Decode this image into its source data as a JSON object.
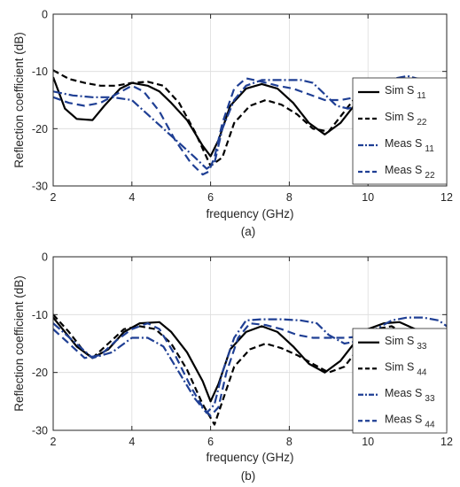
{
  "chart_data": [
    {
      "type": "line",
      "caption": "(a)",
      "xlabel": "frequency (GHz)",
      "ylabel": "Reflection coefficient  (dB)",
      "xlim": [
        2,
        12
      ],
      "ylim": [
        -30,
        0
      ],
      "xticks": [
        2,
        4,
        6,
        8,
        10,
        12
      ],
      "yticks": [
        0,
        -10,
        -20,
        -30
      ],
      "grid": true,
      "legend_position": "right",
      "series": [
        {
          "name": "Sim S",
          "sub": "11",
          "color": "#000000",
          "dash": "solid",
          "x": [
            2.0,
            2.3,
            2.6,
            3.0,
            3.3,
            3.7,
            4.0,
            4.4,
            4.7,
            5.0,
            5.4,
            5.8,
            6.0,
            6.2,
            6.5,
            6.9,
            7.3,
            7.7,
            8.1,
            8.5,
            8.9,
            9.3,
            9.7,
            10.0,
            10.3,
            10.7,
            11.1,
            11.5,
            12.0
          ],
          "y": [
            -11,
            -16.5,
            -18.3,
            -18.5,
            -16,
            -13,
            -12,
            -12.5,
            -13.5,
            -15.5,
            -18.5,
            -23,
            -24.8,
            -22,
            -16,
            -13,
            -12.2,
            -13,
            -15.5,
            -19,
            -21,
            -19,
            -15.5,
            -12.8,
            -11.3,
            -12,
            -14,
            -15.5,
            -16
          ]
        },
        {
          "name": "Sim S",
          "sub": "22",
          "color": "#000000",
          "dash": "7,4",
          "x": [
            2.0,
            2.4,
            2.8,
            3.2,
            3.6,
            4.0,
            4.4,
            4.8,
            5.2,
            5.6,
            6.0,
            6.3,
            6.6,
            7.0,
            7.4,
            7.8,
            8.2,
            8.6,
            9.0,
            9.4,
            9.8,
            10.2,
            10.6,
            11.0,
            11.4,
            11.8,
            12.0
          ],
          "y": [
            -9.8,
            -11.3,
            -12,
            -12.5,
            -12.5,
            -12,
            -11.8,
            -12.5,
            -15.5,
            -20.5,
            -26.5,
            -25,
            -19,
            -16,
            -15,
            -15.8,
            -17.5,
            -20,
            -20.5,
            -17,
            -13.5,
            -12,
            -12.5,
            -14,
            -16.5,
            -19.5,
            -21
          ]
        },
        {
          "name": "Meas S",
          "sub": "11",
          "color": "#1f3f94",
          "dash": "10,3,2,3",
          "x": [
            2.0,
            2.5,
            3.0,
            3.5,
            4.0,
            4.4,
            4.8,
            5.2,
            5.6,
            5.9,
            6.1,
            6.3,
            6.6,
            6.9,
            7.3,
            7.8,
            8.3,
            8.6,
            8.9,
            9.2,
            9.5,
            9.9,
            10.3,
            10.7,
            11.0,
            11.4,
            11.8,
            12.0
          ],
          "y": [
            -13.5,
            -14.2,
            -14.5,
            -14.5,
            -15,
            -17.5,
            -20,
            -22.5,
            -25,
            -27,
            -26,
            -20,
            -15,
            -12.5,
            -11.5,
            -11.5,
            -11.5,
            -12,
            -14,
            -16,
            -16.5,
            -15.5,
            -13,
            -11.2,
            -10.8,
            -11.5,
            -12.5,
            -13
          ]
        },
        {
          "name": "Meas S",
          "sub": "22",
          "color": "#1f3f94",
          "dash": "9,5",
          "x": [
            2.0,
            2.4,
            2.8,
            3.2,
            3.6,
            4.0,
            4.3,
            4.7,
            5.1,
            5.5,
            5.8,
            5.95,
            6.1,
            6.3,
            6.6,
            6.9,
            7.3,
            7.7,
            8.1,
            8.5,
            8.9,
            9.3,
            9.7,
            10.1,
            10.5,
            10.9,
            11.3,
            11.7,
            12.0
          ],
          "y": [
            -14.5,
            -15.5,
            -16,
            -15.5,
            -14,
            -12.5,
            -13.5,
            -17,
            -22,
            -26,
            -28,
            -27.5,
            -25,
            -19,
            -13,
            -11.2,
            -11.8,
            -12.5,
            -13,
            -14,
            -15,
            -15,
            -14.5,
            -14.5,
            -14,
            -13.5,
            -13.5,
            -14,
            -14.5
          ]
        }
      ]
    },
    {
      "type": "line",
      "caption": "(b)",
      "xlabel": "frequency (GHz)",
      "ylabel": "Reflection coefficient  (dB)",
      "xlim": [
        2,
        12
      ],
      "ylim": [
        -30,
        0
      ],
      "xticks": [
        2,
        4,
        6,
        8,
        10,
        12
      ],
      "yticks": [
        0,
        -10,
        -20,
        -30
      ],
      "grid": true,
      "legend_position": "right",
      "series": [
        {
          "name": "Sim S",
          "sub": "33",
          "color": "#000000",
          "dash": "solid",
          "x": [
            2.0,
            2.3,
            2.6,
            3.0,
            3.4,
            3.8,
            4.2,
            4.7,
            5.0,
            5.4,
            5.8,
            6.0,
            6.2,
            6.5,
            6.9,
            7.3,
            7.7,
            8.1,
            8.5,
            8.9,
            9.3,
            9.7,
            10.0,
            10.4,
            10.8,
            11.2,
            11.6,
            12.0
          ],
          "y": [
            -10.5,
            -13,
            -15.5,
            -17.5,
            -16,
            -13,
            -11.5,
            -11.3,
            -13,
            -16.5,
            -21.5,
            -25,
            -22,
            -16,
            -13,
            -12,
            -13,
            -15.5,
            -18.5,
            -20,
            -18,
            -14.5,
            -12.5,
            -11.5,
            -11.3,
            -12.5,
            -13.5,
            -14
          ]
        },
        {
          "name": "Sim S",
          "sub": "44",
          "color": "#000000",
          "dash": "7,4",
          "x": [
            2.0,
            2.4,
            2.8,
            3.0,
            3.4,
            3.8,
            4.2,
            4.6,
            5.0,
            5.4,
            5.8,
            6.1,
            6.3,
            6.6,
            7.0,
            7.4,
            7.8,
            8.2,
            8.6,
            9.0,
            9.4,
            9.8,
            10.2,
            10.6,
            11.0,
            11.4,
            11.8,
            12.0
          ],
          "y": [
            -10,
            -13,
            -16.5,
            -17.5,
            -15,
            -12.5,
            -12,
            -12.5,
            -15,
            -19.5,
            -25.5,
            -29,
            -25,
            -19,
            -16,
            -15,
            -15.8,
            -17,
            -18.5,
            -20,
            -19,
            -15.5,
            -12.5,
            -12,
            -13.5,
            -16,
            -19,
            -21
          ]
        },
        {
          "name": "Meas S",
          "sub": "33",
          "color": "#1f3f94",
          "dash": "10,3,2,3",
          "x": [
            2.0,
            2.5,
            3.0,
            3.5,
            4.0,
            4.4,
            4.8,
            5.2,
            5.6,
            5.9,
            6.1,
            6.3,
            6.6,
            6.9,
            7.3,
            7.8,
            8.3,
            8.7,
            9.0,
            9.4,
            9.8,
            10.2,
            10.6,
            11.0,
            11.4,
            11.8,
            12.0
          ],
          "y": [
            -11.5,
            -14.5,
            -17.5,
            -16.5,
            -14,
            -14,
            -15.5,
            -20,
            -24.5,
            -27,
            -25.5,
            -20,
            -14,
            -11,
            -10.8,
            -10.8,
            -11,
            -11.5,
            -13.5,
            -15,
            -14.5,
            -12.5,
            -11,
            -10.5,
            -10.5,
            -11,
            -12
          ]
        },
        {
          "name": "Meas S",
          "sub": "44",
          "color": "#1f3f94",
          "dash": "9,5",
          "x": [
            2.0,
            2.4,
            2.8,
            3.2,
            3.6,
            4.0,
            4.4,
            4.7,
            5.1,
            5.5,
            5.8,
            6.0,
            6.2,
            6.4,
            6.7,
            7.0,
            7.4,
            7.8,
            8.2,
            8.6,
            9.0,
            9.4,
            9.8,
            10.2,
            10.6,
            11.0,
            11.4,
            11.8,
            12.0
          ],
          "y": [
            -12.5,
            -15,
            -17.5,
            -17,
            -14.5,
            -12.5,
            -11.5,
            -12.5,
            -17,
            -22.5,
            -26,
            -27.5,
            -26,
            -20,
            -14,
            -11.5,
            -11.8,
            -12.5,
            -13.5,
            -14,
            -14,
            -14,
            -13.8,
            -13.5,
            -13.3,
            -13.5,
            -13.8,
            -14,
            -14
          ]
        }
      ]
    }
  ]
}
